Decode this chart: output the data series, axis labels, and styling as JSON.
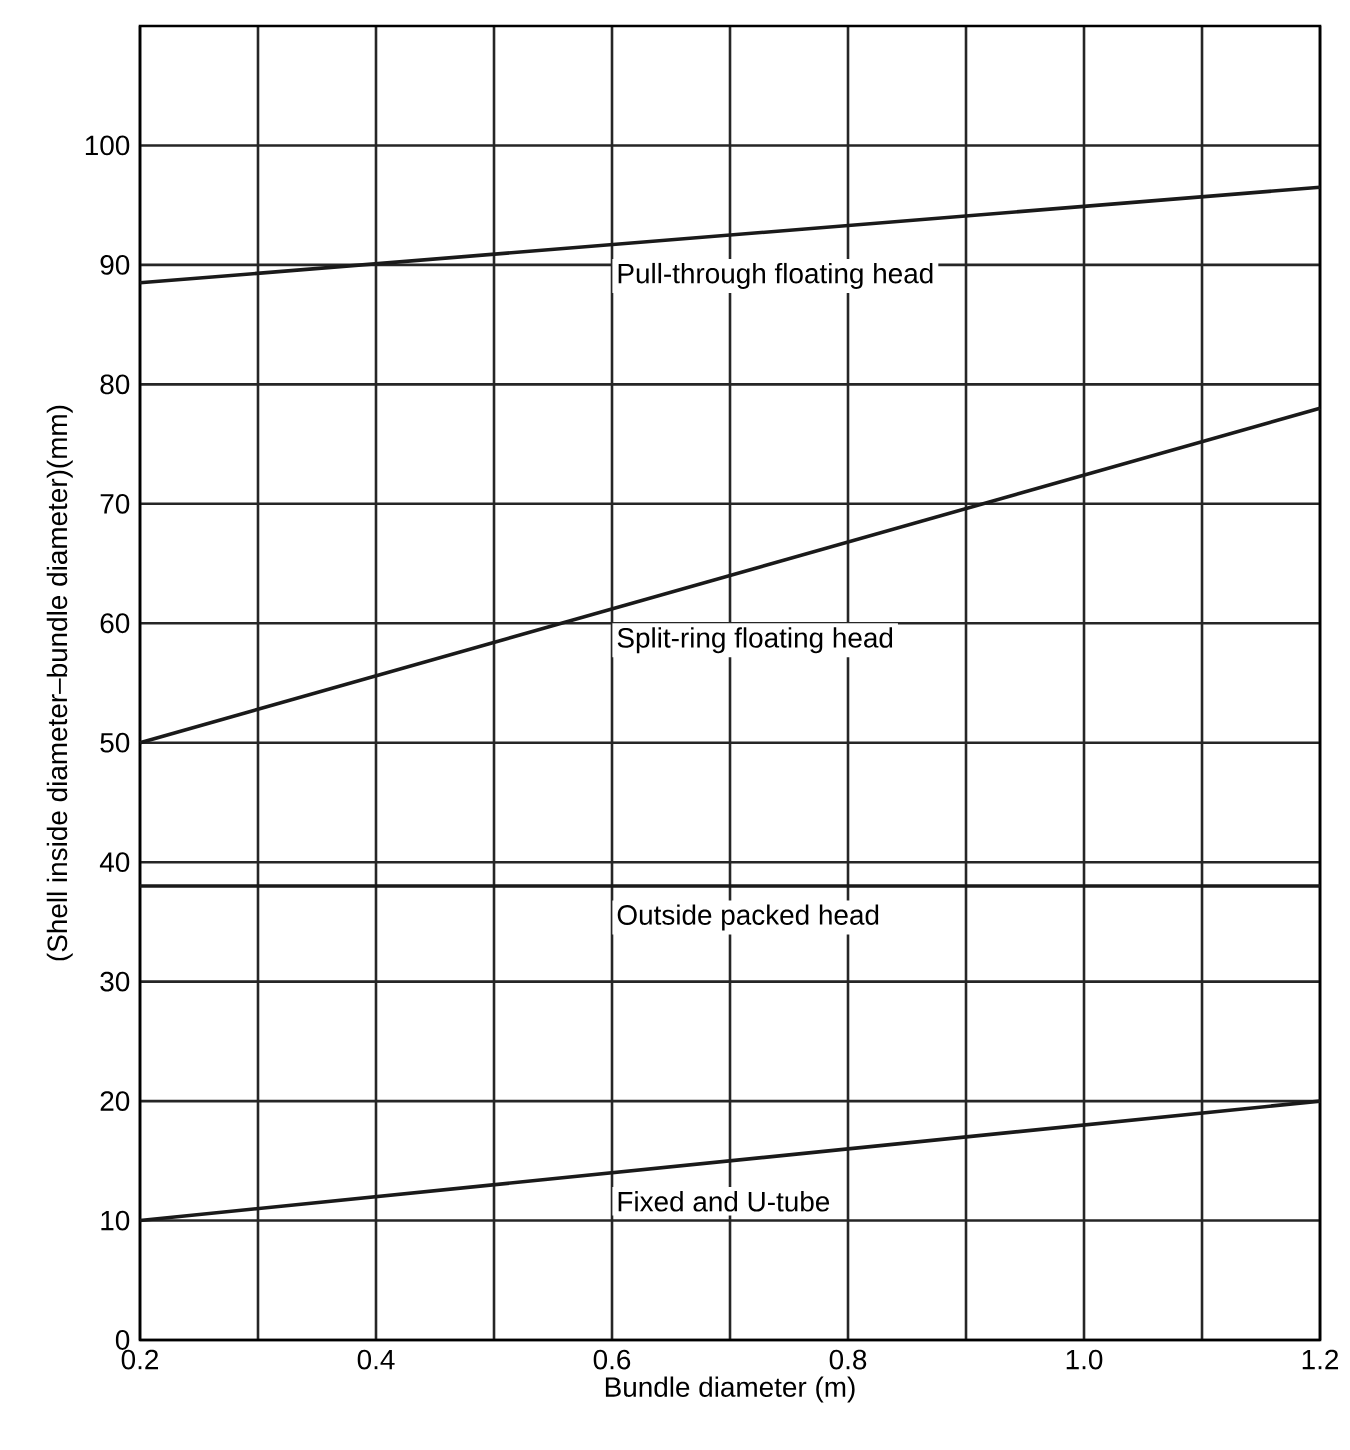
{
  "chart_data": {
    "type": "line",
    "xlabel": "Bundle diameter (m)",
    "ylabel": "(Shell inside diameter–bundle diameter)(mm)",
    "xlim": [
      0.2,
      1.2
    ],
    "ylim": [
      0,
      110
    ],
    "xticks": [
      0.2,
      {
        "value": 0.3,
        "label": null
      },
      0.4,
      {
        "value": 0.5,
        "label": null
      },
      0.6,
      {
        "value": 0.7,
        "label": null
      },
      0.8,
      {
        "value": 0.9,
        "label": null
      },
      {
        "value": 1.0,
        "label": "1.0"
      },
      {
        "value": 1.1,
        "label": null
      },
      1.2
    ],
    "yticks": [
      0,
      10,
      20,
      30,
      40,
      50,
      60,
      70,
      80,
      90,
      100
    ],
    "grid": true,
    "legend": false,
    "marker": "none",
    "line_style": "solid",
    "x": [
      0.2,
      1.2
    ],
    "series": [
      {
        "name": "Pull-through floating head",
        "color": "#1a1a1a",
        "values": [
          88.5,
          96.5
        ]
      },
      {
        "name": "Split-ring floating head",
        "color": "#1a1a1a",
        "values": [
          50,
          78
        ]
      },
      {
        "name": "Outside packed head",
        "color": "#1a1a1a",
        "values": [
          38,
          38
        ]
      },
      {
        "name": "Fixed and U-tube",
        "color": "#1a1a1a",
        "values": [
          10,
          20
        ]
      }
    ]
  }
}
